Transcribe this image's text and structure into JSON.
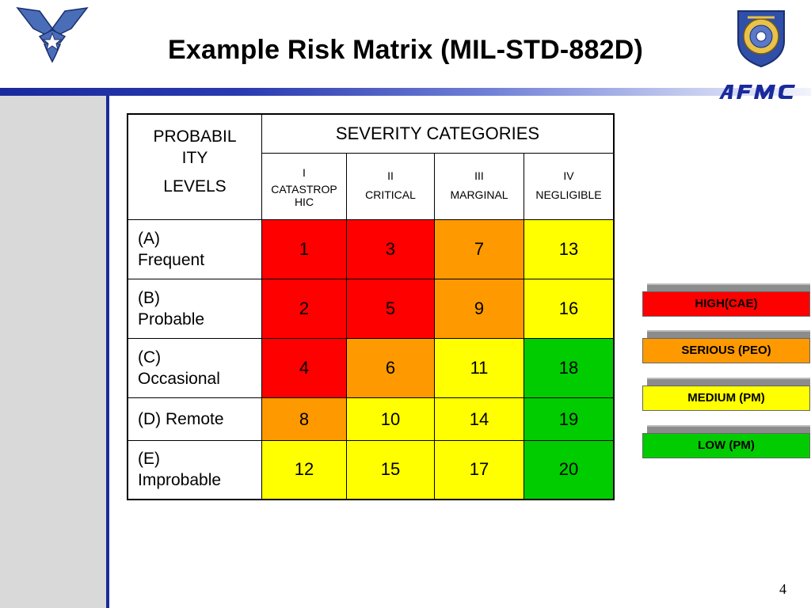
{
  "title": "Example Risk Matrix (MIL-STD-882D)",
  "page_number": "4",
  "logos": {
    "left": "air-force-symbol",
    "right": "afmc-shield",
    "banner": "AFMC"
  },
  "matrix": {
    "probability_header": [
      "PROBABIL",
      "ITY",
      "LEVELS"
    ],
    "severity_header": "SEVERITY CATEGORIES",
    "categories": [
      {
        "num": "I",
        "label": "CATASTROP HIC"
      },
      {
        "num": "II",
        "label": "CRITICAL"
      },
      {
        "num": "III",
        "label": "MARGINAL"
      },
      {
        "num": "IV",
        "label": "NEGLIGIBLE"
      }
    ],
    "rows": [
      {
        "label_line1": "(A)",
        "label_line2": "Frequent",
        "values": [
          "1",
          "3",
          "7",
          "13"
        ],
        "colors": [
          "red",
          "red",
          "orange",
          "yellow"
        ]
      },
      {
        "label_line1": "(B)",
        "label_line2": "Probable",
        "values": [
          "2",
          "5",
          "9",
          "16"
        ],
        "colors": [
          "red",
          "red",
          "orange",
          "yellow"
        ]
      },
      {
        "label_line1": "(C)",
        "label_line2": "Occasional",
        "values": [
          "4",
          "6",
          "11",
          "18"
        ],
        "colors": [
          "red",
          "orange",
          "yellow",
          "green"
        ]
      },
      {
        "label_line1": "(D) Remote",
        "label_line2": "",
        "values": [
          "8",
          "10",
          "14",
          "19"
        ],
        "colors": [
          "orange",
          "yellow",
          "yellow",
          "green"
        ]
      },
      {
        "label_line1": "(E)",
        "label_line2": "Improbable",
        "values": [
          "12",
          "15",
          "17",
          "20"
        ],
        "colors": [
          "yellow",
          "yellow",
          "yellow",
          "green"
        ]
      }
    ]
  },
  "legend": [
    {
      "label": "HIGH(CAE)",
      "color": "#ff0000"
    },
    {
      "label": "SERIOUS (PEO)",
      "color": "#ff9900"
    },
    {
      "label": "MEDIUM (PM)",
      "color": "#ffff00"
    },
    {
      "label": "LOW (PM)",
      "color": "#00cc00"
    }
  ],
  "colors": {
    "red": "#ff0000",
    "orange": "#ff9900",
    "yellow": "#ffff00",
    "green": "#00cc00",
    "header_blue": "#1a2a9c"
  }
}
